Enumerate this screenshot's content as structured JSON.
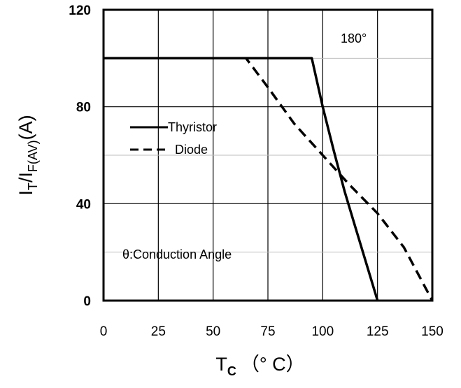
{
  "chart_data": {
    "type": "line",
    "title": "",
    "xlabel": {
      "main": "T",
      "sub": "C",
      "unit": "（° C）"
    },
    "ylabel": {
      "main": "I",
      "sub1": "T",
      "sep": "/I",
      "sub2": "F(AV)",
      "unit": "(A)"
    },
    "xlim": [
      0,
      150
    ],
    "ylim": [
      0,
      120
    ],
    "xticks": [
      0,
      25,
      50,
      75,
      100,
      125,
      150
    ],
    "xtick_labels": [
      "0",
      "25",
      "50",
      "75",
      "100",
      "125",
      "150"
    ],
    "yticks": [
      0,
      40,
      80,
      120
    ],
    "ytick_labels": [
      "0",
      "40",
      "80",
      "120"
    ],
    "grid": true,
    "legend_placement": "left",
    "series": [
      {
        "name": "Thyristor",
        "style": "solid",
        "color": "#000000",
        "points": [
          [
            0,
            100
          ],
          [
            95,
            100
          ],
          [
            100,
            80
          ],
          [
            105,
            62
          ],
          [
            110,
            45
          ],
          [
            115,
            30
          ],
          [
            120,
            15
          ],
          [
            125,
            0
          ]
        ]
      },
      {
        "name": "Diode",
        "style": "dashed",
        "color": "#000000",
        "points": [
          [
            0,
            100
          ],
          [
            65,
            100
          ],
          [
            75,
            88
          ],
          [
            87,
            73
          ],
          [
            100,
            60
          ],
          [
            112,
            48
          ],
          [
            125,
            36
          ],
          [
            137,
            22
          ],
          [
            150,
            0
          ]
        ]
      }
    ],
    "annotations": [
      "180°",
      "θ:Conduction Angle"
    ]
  }
}
